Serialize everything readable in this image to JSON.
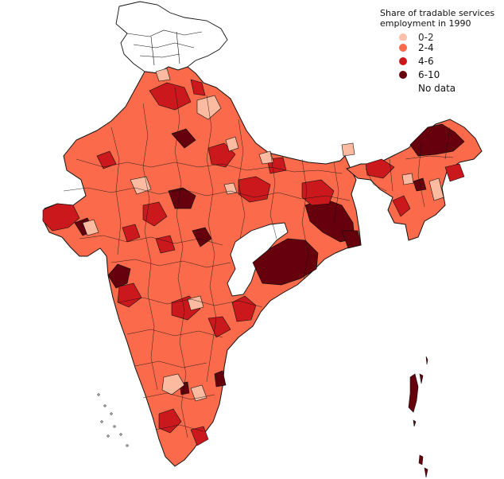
{
  "map": {
    "legend": {
      "title": "Share of tradable services\nemployment in 1990",
      "items": [
        {
          "label": "0-2",
          "color": "#fcbba1"
        },
        {
          "label": "2-4",
          "color": "#fb6a4a"
        },
        {
          "label": "4-6",
          "color": "#cb181d"
        },
        {
          "label": "6-10",
          "color": "#67000d"
        },
        {
          "label": "No data",
          "color": "#ffffff"
        }
      ]
    },
    "colors": {
      "border": "#111111",
      "dominant_fill": "#fb6a4a"
    }
  }
}
